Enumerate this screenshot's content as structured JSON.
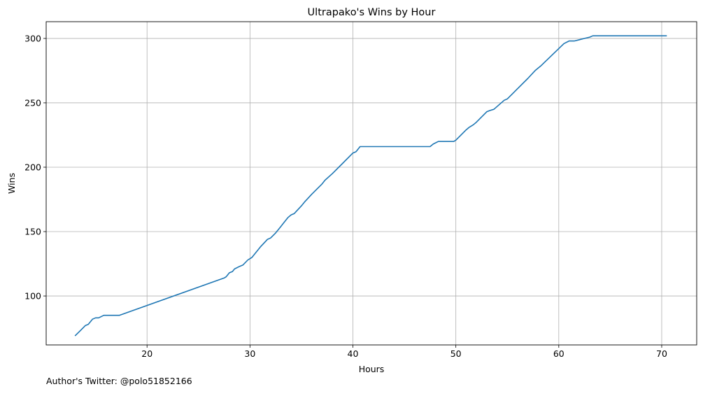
{
  "chart_data": {
    "type": "line",
    "title": "Ultrapako's Wins by Hour",
    "xlabel": "Hours",
    "ylabel": "Wins",
    "xlim": [
      10.2,
      73.4
    ],
    "ylim": [
      62,
      313
    ],
    "xticks": [
      20,
      30,
      40,
      50,
      60,
      70
    ],
    "yticks": [
      100,
      150,
      200,
      250,
      300
    ],
    "grid": true,
    "line_color": "#1f77b4",
    "series": [
      {
        "x": [
          13,
          13.5,
          14,
          14.3,
          14.7,
          15,
          15.3,
          15.8,
          16,
          17.3,
          27.5,
          27.7,
          28,
          28.3,
          28.5,
          29,
          29.3,
          29.8,
          30,
          30.2,
          31,
          31.7,
          32,
          32.5,
          33,
          33.3,
          33.7,
          34,
          34.3,
          35,
          35.3,
          36,
          37,
          37.3,
          38,
          39,
          40,
          40.3,
          40.7,
          47.5,
          47.8,
          48.3,
          49.5,
          49.8,
          50,
          51,
          51.3,
          51.7,
          52,
          53,
          53.3,
          53.7,
          54.7,
          55,
          57,
          57.7,
          58,
          58.3,
          60.5,
          61,
          61.5,
          62,
          62.5,
          63,
          63.3,
          70.5
        ],
        "y": [
          69,
          73,
          77,
          78,
          82,
          83,
          83,
          85,
          85,
          85,
          114,
          115,
          118,
          119,
          121,
          123,
          124,
          128,
          129,
          130,
          138,
          144,
          145,
          149,
          154,
          157,
          161,
          163,
          164,
          170,
          173,
          179,
          187,
          190,
          195,
          203,
          211,
          212,
          216,
          216,
          218,
          220,
          220,
          220,
          221,
          229,
          231,
          233,
          235,
          243,
          244,
          245,
          252,
          253,
          269,
          275,
          277,
          279,
          296,
          298,
          298,
          299,
          300,
          301,
          302,
          302
        ]
      }
    ]
  },
  "footer": {
    "author_text": "Author's Twitter: @polo51852166"
  }
}
